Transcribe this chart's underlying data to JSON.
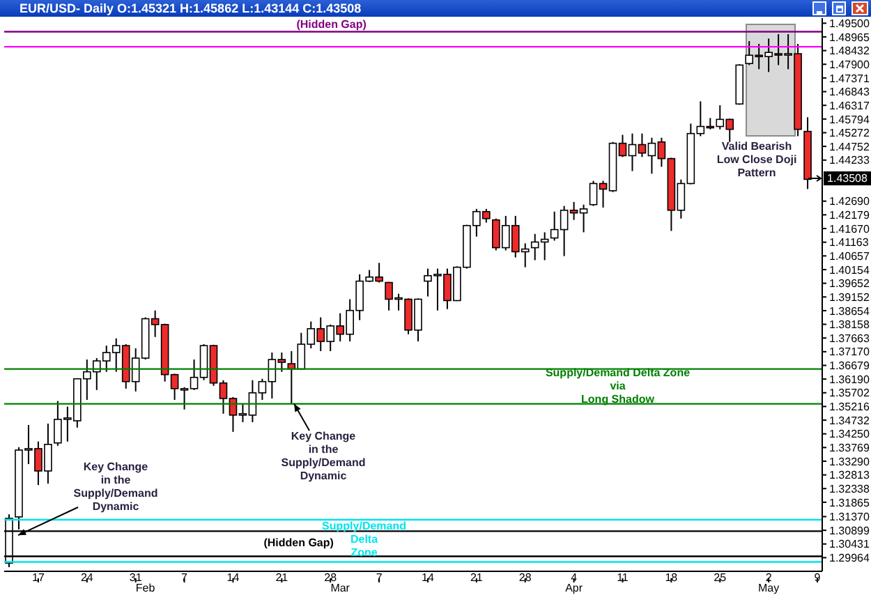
{
  "chart_data": {
    "type": "candlestick",
    "title": "EUR/USD- Daily O:1.45321 H:1.45862 L:1.43144 C:1.43508",
    "categories": [
      null,
      null,
      null,
      "17",
      null,
      null,
      null,
      null,
      "24",
      null,
      null,
      null,
      null,
      "31",
      "\nFeb",
      null,
      null,
      null,
      "7",
      null,
      null,
      null,
      null,
      "14",
      null,
      null,
      null,
      null,
      "21",
      null,
      null,
      null,
      null,
      "28",
      "\nMar",
      null,
      null,
      null,
      "7",
      null,
      null,
      null,
      null,
      "14",
      null,
      null,
      null,
      null,
      "21",
      null,
      null,
      null,
      null,
      "28",
      null,
      null,
      null,
      null,
      "4\nApr",
      null,
      null,
      null,
      null,
      "11",
      null,
      null,
      null,
      null,
      "18",
      null,
      null,
      null,
      null,
      "25",
      null,
      null,
      null,
      null,
      "2\nMay",
      null,
      null,
      null,
      null,
      "9"
    ],
    "ohlc": [
      [
        1.2978,
        1.3145,
        1.2964,
        1.3131
      ],
      [
        1.3136,
        1.3378,
        1.3093,
        1.3368
      ],
      [
        1.3368,
        1.3456,
        1.3319,
        1.3373
      ],
      [
        1.3373,
        1.3398,
        1.3246,
        1.3295
      ],
      [
        1.3295,
        1.3461,
        1.3251,
        1.3388
      ],
      [
        1.3393,
        1.3541,
        1.3383,
        1.3476
      ],
      [
        1.3476,
        1.3521,
        1.3398,
        1.3481
      ],
      [
        1.3471,
        1.3622,
        1.3447,
        1.362
      ],
      [
        1.362,
        1.3689,
        1.3545,
        1.3645
      ],
      [
        1.3645,
        1.3694,
        1.358,
        1.3684
      ],
      [
        1.3684,
        1.3739,
        1.3645,
        1.3714
      ],
      [
        1.3714,
        1.3765,
        1.3645,
        1.3739
      ],
      [
        1.3739,
        1.3744,
        1.3585,
        1.361
      ],
      [
        1.361,
        1.3729,
        1.3575,
        1.3694
      ],
      [
        1.3694,
        1.3841,
        1.3689,
        1.3836
      ],
      [
        1.3836,
        1.3866,
        1.377,
        1.3815
      ],
      [
        1.3815,
        1.3818,
        1.361,
        1.3635
      ],
      [
        1.3635,
        1.3638,
        1.3545,
        1.3585
      ],
      [
        1.358,
        1.359,
        1.3511,
        1.3585
      ],
      [
        1.3585,
        1.3689,
        1.358,
        1.3625
      ],
      [
        1.3625,
        1.3744,
        1.3615,
        1.3739
      ],
      [
        1.3739,
        1.3742,
        1.3595,
        1.3605
      ],
      [
        1.3605,
        1.3615,
        1.3496,
        1.355
      ],
      [
        1.355,
        1.3555,
        1.3432,
        1.3491
      ],
      [
        1.3491,
        1.3531,
        1.3466,
        1.3496
      ],
      [
        1.3491,
        1.3615,
        1.3466,
        1.357
      ],
      [
        1.357,
        1.362,
        1.3545,
        1.361
      ],
      [
        1.361,
        1.3714,
        1.355,
        1.3689
      ],
      [
        1.3689,
        1.3714,
        1.3645,
        1.3679
      ],
      [
        1.3674,
        1.3719,
        1.3531,
        1.3655
      ],
      [
        1.3655,
        1.3785,
        1.3652,
        1.3744
      ],
      [
        1.3744,
        1.3826,
        1.3729,
        1.38
      ],
      [
        1.38,
        1.3841,
        1.3719,
        1.3754
      ],
      [
        1.3754,
        1.3815,
        1.3719,
        1.381
      ],
      [
        1.381,
        1.3856,
        1.3754,
        1.378
      ],
      [
        1.378,
        1.3907,
        1.3754,
        1.3866
      ],
      [
        1.3866,
        1.3998,
        1.3831,
        1.3973
      ],
      [
        1.3973,
        1.4014,
        1.397,
        1.3988
      ],
      [
        1.3988,
        1.404,
        1.3968,
        1.3973
      ],
      [
        1.3968,
        1.397,
        1.3866,
        1.3907
      ],
      [
        1.3907,
        1.3927,
        1.3866,
        1.3912
      ],
      [
        1.3907,
        1.391,
        1.378,
        1.3795
      ],
      [
        1.3795,
        1.391,
        1.3754,
        1.3907
      ],
      [
        1.3973,
        1.4019,
        1.3917,
        1.3993
      ],
      [
        1.3993,
        1.4019,
        1.3866,
        1.3998
      ],
      [
        1.3998,
        1.4019,
        1.3871,
        1.3902
      ],
      [
        1.3902,
        1.4027,
        1.39,
        1.4024
      ],
      [
        1.4024,
        1.4181,
        1.4019,
        1.4178
      ],
      [
        1.4178,
        1.424,
        1.4137,
        1.423
      ],
      [
        1.423,
        1.424,
        1.4189,
        1.4204
      ],
      [
        1.4199,
        1.4204,
        1.4086,
        1.4096
      ],
      [
        1.4096,
        1.4214,
        1.4086,
        1.4178
      ],
      [
        1.4178,
        1.4214,
        1.406,
        1.4081
      ],
      [
        1.4081,
        1.4112,
        1.4024,
        1.4091
      ],
      [
        1.4096,
        1.4147,
        1.405,
        1.4117
      ],
      [
        1.4117,
        1.4153,
        1.405,
        1.4127
      ],
      [
        1.4132,
        1.423,
        1.4122,
        1.4163
      ],
      [
        1.4163,
        1.4251,
        1.4065,
        1.4235
      ],
      [
        1.4235,
        1.4266,
        1.4199,
        1.4225
      ],
      [
        1.4225,
        1.4256,
        1.4153,
        1.424
      ],
      [
        1.4256,
        1.4345,
        1.4251,
        1.4335
      ],
      [
        1.4335,
        1.4345,
        1.4245,
        1.4314
      ],
      [
        1.4308,
        1.4492,
        1.4303,
        1.4487
      ],
      [
        1.4487,
        1.4519,
        1.4435,
        1.444
      ],
      [
        1.444,
        1.4524,
        1.4382,
        1.4482
      ],
      [
        1.4482,
        1.4524,
        1.4435,
        1.445
      ],
      [
        1.444,
        1.4508,
        1.4372,
        1.4487
      ],
      [
        1.4492,
        1.4508,
        1.4398,
        1.4429
      ],
      [
        1.4429,
        1.4432,
        1.4158,
        1.4235
      ],
      [
        1.4235,
        1.435,
        1.4204,
        1.4335
      ],
      [
        1.4335,
        1.4562,
        1.4332,
        1.4524
      ],
      [
        1.4524,
        1.4647,
        1.4514,
        1.4551
      ],
      [
        1.4551,
        1.4583,
        1.454,
        1.4546
      ],
      [
        1.4551,
        1.4632,
        1.454,
        1.4578
      ],
      [
        1.4578,
        1.4581,
        1.4492,
        1.454
      ],
      [
        1.4637,
        1.479,
        1.4634,
        1.4787
      ],
      [
        1.4793,
        1.488,
        1.4787,
        1.4825
      ],
      [
        1.4825,
        1.4869,
        1.4771,
        1.482
      ],
      [
        1.482,
        1.489,
        1.476,
        1.4836
      ],
      [
        1.4831,
        1.4907,
        1.4787,
        1.4828
      ],
      [
        1.4826,
        1.4907,
        1.4771,
        1.4831
      ],
      [
        1.4831,
        1.4869,
        1.4514,
        1.454
      ],
      [
        1.45321,
        1.45862,
        1.43144,
        1.43508
      ],
      null
    ],
    "log": "y",
    "ylim": [
      1.295,
      1.497
    ],
    "yticks": [
      {
        "value": 1.495,
        "label": "1.49500"
      },
      {
        "value": 1.48965,
        "label": "1.48965"
      },
      {
        "value": 1.48432,
        "label": "1.48432"
      },
      {
        "value": 1.479,
        "label": "1.47900"
      },
      {
        "value": 1.47371,
        "label": "1.47371"
      },
      {
        "value": 1.46843,
        "label": "1.46843"
      },
      {
        "value": 1.46317,
        "label": "1.46317"
      },
      {
        "value": 1.45794,
        "label": "1.45794"
      },
      {
        "value": 1.45272,
        "label": "1.45272"
      },
      {
        "value": 1.44752,
        "label": "1.44752"
      },
      {
        "value": 1.44233,
        "label": "1.44233"
      },
      {
        "value": 1.4269,
        "label": "1.42690"
      },
      {
        "value": 1.42179,
        "label": "1.42179"
      },
      {
        "value": 1.4167,
        "label": "1.41670"
      },
      {
        "value": 1.41163,
        "label": "1.41163"
      },
      {
        "value": 1.40657,
        "label": "1.40657"
      },
      {
        "value": 1.40154,
        "label": "1.40154"
      },
      {
        "value": 1.39652,
        "label": "1.39652"
      },
      {
        "value": 1.39152,
        "label": "1.39152"
      },
      {
        "value": 1.38654,
        "label": "1.38654"
      },
      {
        "value": 1.38158,
        "label": "1.38158"
      },
      {
        "value": 1.37663,
        "label": "1.37663"
      },
      {
        "value": 1.3717,
        "label": "1.37170"
      },
      {
        "value": 1.36679,
        "label": "1.36679"
      },
      {
        "value": 1.3619,
        "label": "1.36190"
      },
      {
        "value": 1.35702,
        "label": "1.35702"
      },
      {
        "value": 1.35216,
        "label": "1.35216"
      },
      {
        "value": 1.34732,
        "label": "1.34732"
      },
      {
        "value": 1.3425,
        "label": "1.34250"
      },
      {
        "value": 1.33769,
        "label": "1.33769"
      },
      {
        "value": 1.3329,
        "label": "1.33290"
      },
      {
        "value": 1.32813,
        "label": "1.32813"
      },
      {
        "value": 1.32338,
        "label": "1.32338"
      },
      {
        "value": 1.31865,
        "label": "1.31865"
      },
      {
        "value": 1.3137,
        "label": "1.31370"
      },
      {
        "value": 1.30899,
        "label": "1.30899"
      },
      {
        "value": 1.30431,
        "label": "1.30431"
      },
      {
        "value": 1.29964,
        "label": "1.29964"
      }
    ],
    "ref_lines": [
      {
        "axis": "y",
        "value": 1.4917,
        "label": "(Hidden Gap)",
        "color": "#800080"
      },
      {
        "axis": "y",
        "value": 1.4858,
        "color": "#ff00ff"
      },
      {
        "axis": "y",
        "value": 1.3087,
        "label": "(Hidden Gap)",
        "color": "#000000"
      },
      {
        "axis": "y",
        "value": 1.3001,
        "color": "#000000"
      },
      {
        "axis": "y",
        "value": 1.3126,
        "label": "Supply/Demand\nDelta\nZone",
        "color": "#00e5ee"
      },
      {
        "axis": "y",
        "value": 1.2982,
        "color": "#00e5ee"
      },
      {
        "axis": "y",
        "value": 1.3655,
        "label": "Supply/Demand Delta Zone\nvia\nLong Shadow",
        "color": "#008000"
      },
      {
        "axis": "y",
        "value": 1.3531,
        "color": "#008000"
      }
    ],
    "annotations": [
      {
        "text": "Key Change\nin the\nSupply/Demand\nDynamic",
        "y": 1.3073
      },
      {
        "text": "Key Change\nin the\nSupply/Demand\nDynamic",
        "y": 1.3531
      },
      "Valid Bearish\nLow Close Doji\nPattern",
      "1.43508"
    ]
  }
}
